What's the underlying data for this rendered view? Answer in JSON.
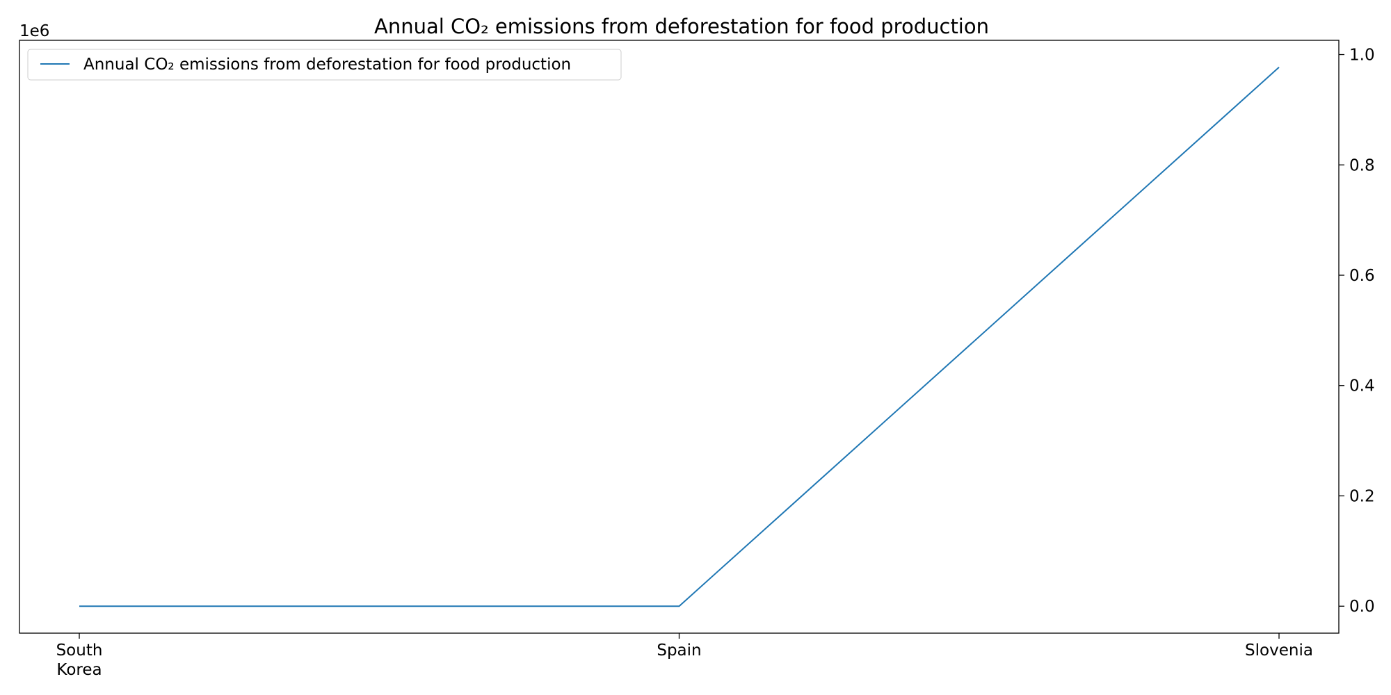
{
  "chart_data": {
    "type": "line",
    "title": "Annual CO₂ emissions from deforestation for food production",
    "categories": [
      "South\nKorea",
      "Spain",
      "Slovenia"
    ],
    "series": [
      {
        "name": "Annual CO₂ emissions from deforestation for food production",
        "values": [
          0,
          0,
          977000
        ],
        "color": "#1f77b4"
      }
    ],
    "xlabel": "",
    "ylabel": "",
    "y_axis_side": "right",
    "ylim": [
      -48850,
      1025850
    ],
    "y_ticks": [
      0,
      200000,
      400000,
      600000,
      800000,
      1000000
    ],
    "y_tick_labels": [
      "0.0",
      "0.2",
      "0.4",
      "0.6",
      "0.8",
      "1.0"
    ],
    "y_offset_label": "1e6",
    "grid": false,
    "legend_position": "top-left"
  }
}
